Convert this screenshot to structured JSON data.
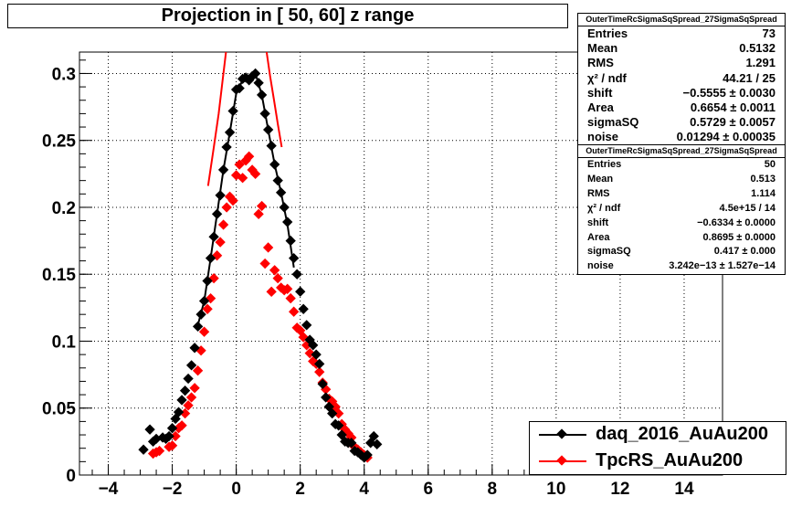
{
  "chart_data": {
    "type": "scatter",
    "title": "Projection in [  50,  60] z range",
    "xlim": [
      -4.9,
      15.2
    ],
    "ylim": [
      0,
      0.316
    ],
    "x_ticks": [
      "−4",
      "−2",
      "0",
      "2",
      "4",
      "6",
      "8",
      "10",
      "12",
      "14"
    ],
    "x_tick_values": [
      -4,
      -2,
      0,
      2,
      4,
      6,
      8,
      10,
      12,
      14
    ],
    "y_ticks": [
      "0",
      "0.05",
      "0.1",
      "0.15",
      "0.2",
      "0.25",
      "0.3"
    ],
    "y_tick_values": [
      0,
      0.05,
      0.1,
      0.15,
      0.2,
      0.25,
      0.3
    ],
    "grid": true,
    "series": [
      {
        "name": "daq_2016_AuAu200",
        "color": "#000000",
        "x": [
          -2.9,
          -2.7,
          -2.6,
          -2.5,
          -2.3,
          -2.2,
          -2.1,
          -2.0,
          -1.9,
          -1.8,
          -1.7,
          -1.6,
          -1.5,
          -1.4,
          -1.3,
          -1.2,
          -1.1,
          -1.0,
          -0.9,
          -0.8,
          -0.7,
          -0.6,
          -0.5,
          -0.4,
          -0.3,
          -0.2,
          -0.1,
          0.0,
          0.1,
          0.2,
          0.3,
          0.4,
          0.5,
          0.6,
          0.7,
          0.8,
          0.9,
          1.0,
          1.1,
          1.2,
          1.3,
          1.4,
          1.5,
          1.6,
          1.7,
          1.8,
          1.9,
          2.0,
          2.1,
          2.2,
          2.3,
          2.4,
          2.5,
          2.6,
          2.7,
          2.8,
          2.9,
          3.0,
          3.1,
          3.2,
          3.3,
          3.4,
          3.5,
          3.6,
          3.7,
          3.8,
          3.9,
          4.0,
          4.1,
          4.2,
          4.3,
          4.4
        ],
        "y": [
          0.019,
          0.034,
          0.025,
          0.027,
          0.028,
          0.027,
          0.029,
          0.035,
          0.042,
          0.047,
          0.056,
          0.063,
          0.072,
          0.082,
          0.095,
          0.111,
          0.12,
          0.13,
          0.145,
          0.162,
          0.178,
          0.195,
          0.209,
          0.228,
          0.245,
          0.256,
          0.272,
          0.288,
          0.289,
          0.296,
          0.297,
          0.295,
          0.298,
          0.3,
          0.293,
          0.284,
          0.27,
          0.258,
          0.246,
          0.232,
          0.22,
          0.211,
          0.2,
          0.189,
          0.175,
          0.162,
          0.15,
          0.137,
          0.124,
          0.112,
          0.101,
          0.097,
          0.09,
          0.083,
          0.068,
          0.058,
          0.051,
          0.046,
          0.038,
          0.037,
          0.03,
          0.025,
          0.024,
          0.024,
          0.018,
          0.017,
          0.015,
          0.013,
          0.015,
          0.024,
          0.029,
          0.023
        ]
      },
      {
        "name": "TpcRS_AuAu200",
        "color": "#ff0000",
        "x": [
          -2.6,
          -2.5,
          -2.4,
          -2.1,
          -2.0,
          -1.9,
          -1.8,
          -1.7,
          -1.6,
          -1.5,
          -1.4,
          -1.3,
          -1.2,
          -1.1,
          -1.0,
          -0.9,
          -0.8,
          -0.7,
          -0.6,
          -0.5,
          -0.4,
          -0.3,
          -0.2,
          -0.1,
          0.0,
          0.1,
          0.2,
          0.3,
          0.4,
          0.5,
          0.6,
          0.7,
          0.8,
          0.9,
          1.0,
          1.1,
          1.2,
          1.3,
          1.4,
          1.5,
          1.6,
          1.7,
          1.8,
          1.9,
          2.0,
          2.1,
          2.2,
          2.3,
          2.4,
          2.5,
          2.6,
          2.7,
          2.8,
          2.9,
          3.0,
          3.1,
          3.2,
          3.3,
          3.4,
          3.5,
          3.6,
          3.7,
          3.8,
          3.9,
          4.0,
          4.1
        ],
        "y": [
          0.016,
          0.017,
          0.018,
          0.021,
          0.022,
          0.029,
          0.035,
          0.037,
          0.046,
          0.052,
          0.058,
          0.065,
          0.078,
          0.093,
          0.107,
          0.124,
          0.132,
          0.147,
          0.164,
          0.174,
          0.187,
          0.2,
          0.208,
          0.205,
          0.224,
          0.232,
          0.222,
          0.235,
          0.238,
          0.228,
          0.225,
          0.195,
          0.201,
          0.158,
          0.17,
          0.137,
          0.153,
          0.147,
          0.14,
          0.138,
          0.139,
          0.132,
          0.122,
          0.11,
          0.108,
          0.103,
          0.097,
          0.091,
          0.085,
          0.083,
          0.077,
          0.069,
          0.064,
          0.057,
          0.055,
          0.051,
          0.046,
          0.038,
          0.034,
          0.031,
          0.028,
          0.021,
          0.019,
          0.017,
          0.015,
          0.013
        ]
      }
    ],
    "fit_curve": {
      "color": "#000000",
      "x": [
        -1.2,
        -1.0,
        -0.8,
        -0.6,
        -0.4,
        -0.2,
        0.0,
        0.2,
        0.4,
        0.6,
        0.8,
        1.0,
        1.2,
        1.4,
        1.6,
        1.8
      ],
      "y": [
        0.112,
        0.13,
        0.162,
        0.195,
        0.228,
        0.256,
        0.285,
        0.295,
        0.298,
        0.3,
        0.284,
        0.258,
        0.232,
        0.211,
        0.187,
        0.155
      ]
    },
    "red_curves": [
      {
        "x": [
          -0.88,
          -0.7,
          -0.55,
          -0.42,
          -0.32
        ],
        "y": [
          0.216,
          0.245,
          0.27,
          0.296,
          0.316
        ]
      },
      {
        "x": [
          0.95,
          1.06,
          1.18,
          1.3,
          1.42
        ],
        "y": [
          0.316,
          0.298,
          0.28,
          0.262,
          0.245
        ]
      }
    ],
    "stats": [
      {
        "name": "OuterTimeRcSigmaSqSpread_27SigmaSqSpread",
        "rows": [
          {
            "label": "Entries",
            "value": "73"
          },
          {
            "label": "Mean",
            "value": "0.5132"
          },
          {
            "label": "RMS",
            "value": "1.291"
          },
          {
            "label": "χ² / ndf",
            "value": "44.21 / 25"
          },
          {
            "label": "shift",
            "value": "−0.5555 ± 0.0030"
          },
          {
            "label": "Area",
            "value": "0.6654 ± 0.0011"
          },
          {
            "label": "sigmaSQ",
            "value": "0.5729 ± 0.0057"
          },
          {
            "label": "noise",
            "value": "0.01294 ± 0.00035"
          }
        ]
      },
      {
        "name": "OuterTimeRcSigmaSqSpread_27SigmaSqSpread",
        "rows": [
          {
            "label": "Entries",
            "value": "50"
          },
          {
            "label": "Mean",
            "value": "0.513"
          },
          {
            "label": "RMS",
            "value": "1.114"
          },
          {
            "label": "χ² / ndf",
            "value": "4.5e+15 / 14"
          },
          {
            "label": "shift",
            "value": "−0.6334 ± 0.0000"
          },
          {
            "label": "Area",
            "value": "0.8695 ± 0.0000"
          },
          {
            "label": "sigmaSQ",
            "value": "0.417 ± 0.000"
          },
          {
            "label": "noise",
            "value": "3.242e−13 ± 1.527e−14"
          }
        ]
      }
    ],
    "legend": [
      {
        "label": "daq_2016_AuAu200",
        "color": "#000000"
      },
      {
        "label": "TpcRS_AuAu200",
        "color": "#ff0000"
      }
    ]
  }
}
